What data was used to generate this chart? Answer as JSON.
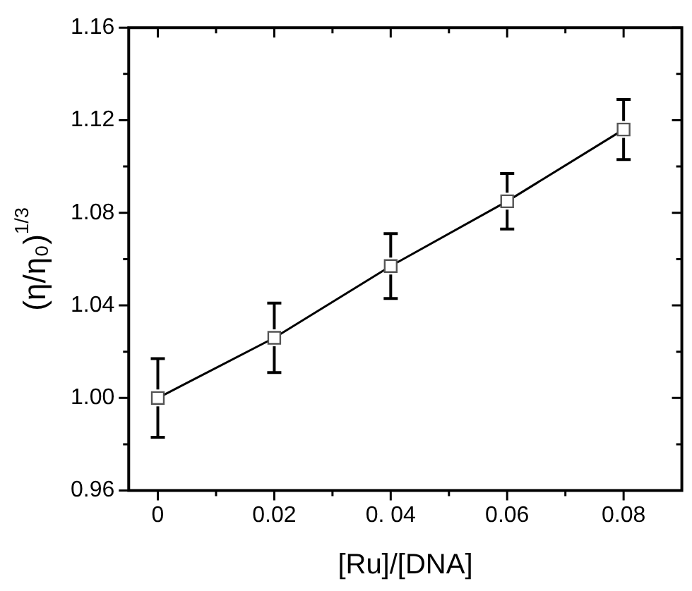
{
  "chart_data": {
    "type": "line",
    "xlabel": "[Ru]/[DNA]",
    "ylabel": "(η/η₀)$^{1/3}$",
    "x": [
      0,
      0.02,
      0.04,
      0.06,
      0.08
    ],
    "series": [
      {
        "color": "#000000",
        "values": [
          1.0,
          1.026,
          1.057,
          1.085,
          1.116
        ],
        "errors": [
          0.017,
          0.015,
          0.014,
          0.012,
          0.013
        ]
      }
    ],
    "xlim": [
      -0.005,
      0.09
    ],
    "xticks": [
      0,
      {
        "value": 0.01,
        "label": null
      },
      {
        "value": 0.02,
        "label": "0.02"
      },
      {
        "value": 0.03,
        "label": null
      },
      {
        "value": 0.04,
        "label": "0. 04"
      },
      {
        "value": 0.05,
        "label": null
      },
      {
        "value": 0.06,
        "label": "0.06"
      },
      {
        "value": 0.07,
        "label": null
      },
      {
        "value": 0.08,
        "label": "0.08"
      }
    ],
    "ylim": [
      0.96,
      1.16
    ],
    "yticks": [
      {
        "value": 0.96,
        "label": "0.96"
      },
      {
        "value": 0.98,
        "label": null
      },
      {
        "value": 1.0,
        "label": "1.00"
      },
      {
        "value": 1.02,
        "label": null
      },
      {
        "value": 1.04,
        "label": "1.04"
      },
      {
        "value": 1.06,
        "label": null
      },
      {
        "value": 1.08,
        "label": "1.08"
      },
      {
        "value": 1.1,
        "label": null
      },
      {
        "value": 1.12,
        "label": "1.12"
      },
      {
        "value": 1.14,
        "label": null
      },
      {
        "value": 1.16,
        "label": "1.16"
      }
    ],
    "marker": "square",
    "line_style": "solid",
    "grid": false,
    "legend": false
  }
}
